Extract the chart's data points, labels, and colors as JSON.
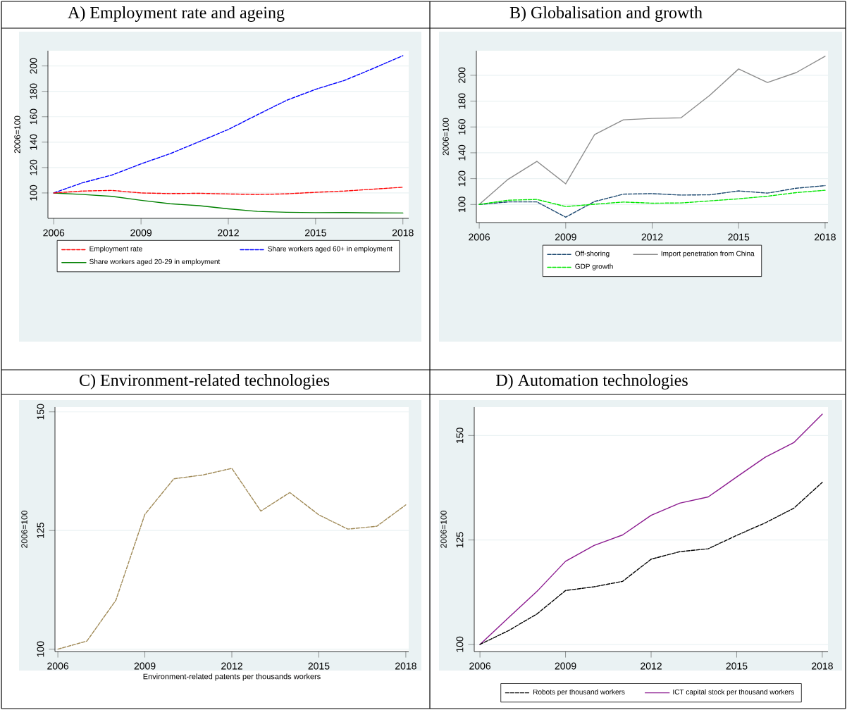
{
  "chart_data": [
    {
      "type": "line",
      "title": "A)  Employment rate and ageing",
      "ylabel": "2006=100",
      "x": [
        2006,
        2007,
        2008,
        2009,
        2010,
        2011,
        2012,
        2013,
        2014,
        2015,
        2016,
        2017,
        2018
      ],
      "xlim": [
        2005.8,
        2018.2
      ],
      "xticks": [
        2006,
        2009,
        2012,
        2015,
        2018
      ],
      "ylim": [
        80,
        212
      ],
      "yticks": [
        100,
        120,
        140,
        160,
        180,
        200
      ],
      "grid": "y",
      "legend": "bottom",
      "series": [
        {
          "name": "Employment rate",
          "color": "#ff0000",
          "line_style": "dashed",
          "values": [
            100,
            101.5,
            102,
            100,
            99.5,
            99.7,
            99.2,
            98.8,
            99.3,
            100.5,
            101.5,
            103,
            104.5
          ]
        },
        {
          "name": "Share workers aged 60+ in employment",
          "color": "#0000ff",
          "line_style": "dashed",
          "values": [
            100,
            108.1,
            114.1,
            122.9,
            130.9,
            140.4,
            150,
            161.6,
            172.9,
            181.6,
            188.7,
            198.2,
            208.1
          ]
        },
        {
          "name": "Share workers aged 20-29 in employment",
          "color": "#008000",
          "line_style": "solid",
          "values": [
            100,
            98.8,
            97.3,
            94.2,
            91.5,
            90,
            87.5,
            85.5,
            84.8,
            84.5,
            84.6,
            84.3,
            84.2
          ]
        }
      ]
    },
    {
      "type": "line",
      "title": "B)  Globalisation and growth",
      "ylabel": "2006=100",
      "x": [
        2006,
        2007,
        2008,
        2009,
        2010,
        2011,
        2012,
        2013,
        2014,
        2015,
        2016,
        2017,
        2018
      ],
      "xlim": [
        2005.9,
        2018.1
      ],
      "xticks": [
        2006,
        2009,
        2012,
        2015,
        2018
      ],
      "ylim": [
        86,
        219
      ],
      "yticks": [
        100,
        120,
        140,
        160,
        180,
        200
      ],
      "grid": "y",
      "legend": "bottom",
      "series": [
        {
          "name": "Off-shoring",
          "color": "#1a476f",
          "line_style": "dashed",
          "values": [
            100,
            102,
            102,
            90.2,
            102.3,
            108,
            108.4,
            107.3,
            107.5,
            110.5,
            108.8,
            112.6,
            114.6
          ]
        },
        {
          "name": "Import penetration from China",
          "color": "#8c8c8c",
          "line_style": "solid",
          "values": [
            100,
            119.5,
            133.4,
            116,
            154,
            165.5,
            166.6,
            167.1,
            184.5,
            204.9,
            194.4,
            202.1,
            214.7
          ]
        },
        {
          "name": "GDP growth",
          "color": "#00e600",
          "line_style": "dashed",
          "values": [
            100,
            103.3,
            103.9,
            98.4,
            100.2,
            101.9,
            101,
            101.2,
            102.8,
            104.4,
            106.4,
            109.2,
            111
          ]
        }
      ]
    },
    {
      "type": "line",
      "title": "C)  Environment-related technologies",
      "ylabel": "2006=100",
      "xlabel": "Environment-related patents per thousands workers",
      "x": [
        2006,
        2007,
        2008,
        2009,
        2010,
        2011,
        2012,
        2013,
        2014,
        2015,
        2016,
        2017,
        2018
      ],
      "xlim": [
        2005.9,
        2018.1
      ],
      "xticks": [
        2006,
        2009,
        2012,
        2015,
        2018
      ],
      "ylim": [
        99.5,
        151
      ],
      "yticks": [
        100,
        125,
        150
      ],
      "grid": "y",
      "series": [
        {
          "color": "#a08a57",
          "line_style": "dashed",
          "values": [
            100,
            101.7,
            110.3,
            128.4,
            135.9,
            136.7,
            138.1,
            129.1,
            133,
            128.3,
            125.3,
            125.9,
            130.4
          ]
        }
      ]
    },
    {
      "type": "line",
      "title": "D)  Automation technologies",
      "ylabel": "2006=100",
      "x": [
        2006,
        2007,
        2008,
        2009,
        2010,
        2011,
        2012,
        2013,
        2014,
        2015,
        2016,
        2017,
        2018
      ],
      "xlim": [
        2005.8,
        2018.2
      ],
      "xticks": [
        2006,
        2009,
        2012,
        2015,
        2018
      ],
      "ylim": [
        98.3,
        156.8
      ],
      "yticks": [
        100,
        125,
        150
      ],
      "grid": "y",
      "legend": "bottom",
      "series": [
        {
          "name": "Robots per thousand workers",
          "color": "#000000",
          "line_style": "dashed",
          "values": [
            100,
            103.3,
            107.3,
            112.9,
            113.8,
            115.1,
            120.4,
            122.2,
            122.9,
            126.1,
            129.1,
            132.6,
            138.8
          ]
        },
        {
          "name": "ICT capital stock per thousand workers",
          "color": "#8b1a8f",
          "line_style": "solid",
          "values": [
            100,
            106.4,
            112.7,
            119.9,
            123.7,
            126.2,
            130.9,
            133.8,
            135.3,
            140.1,
            144.8,
            148.3,
            155.1
          ]
        }
      ]
    }
  ]
}
